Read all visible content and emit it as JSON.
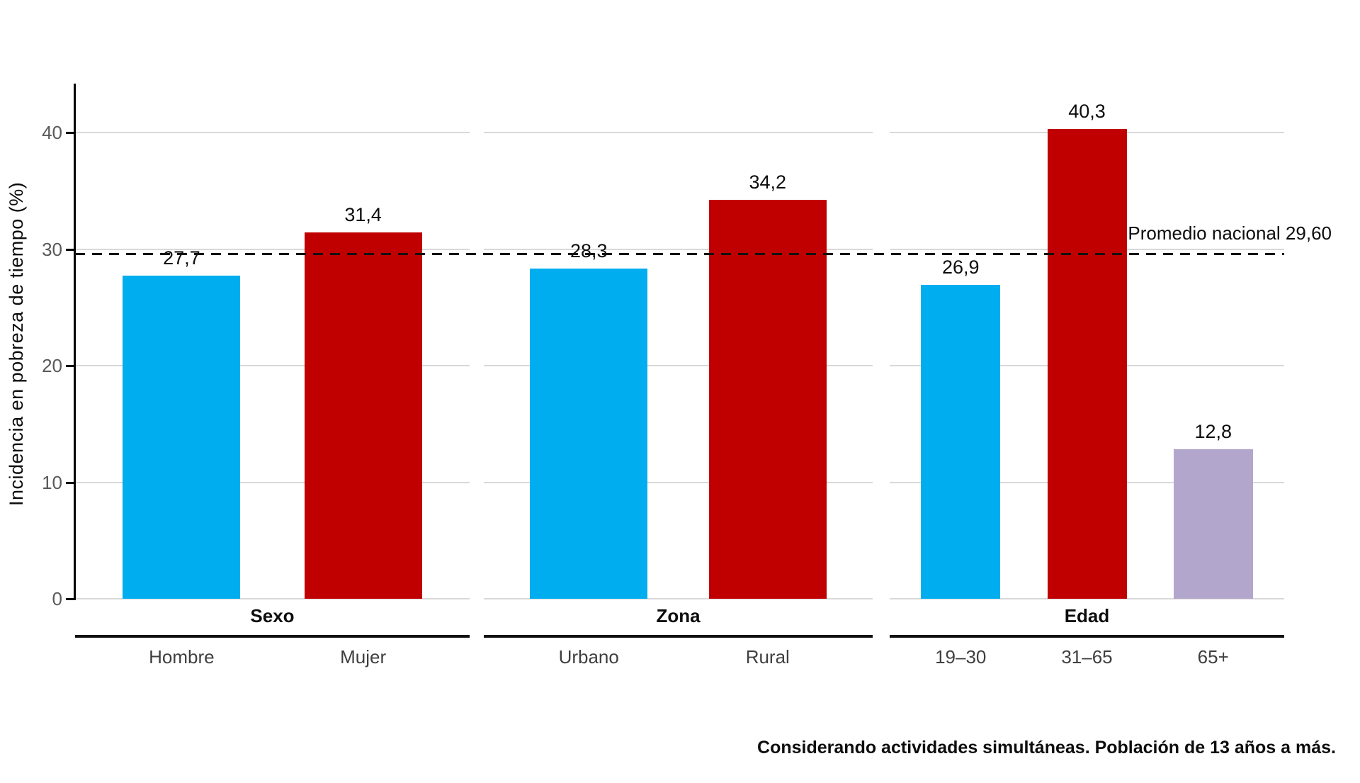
{
  "chart_data": {
    "type": "bar",
    "title": "",
    "ylabel": "Incidencia en pobreza de tiempo (%)",
    "xlabel": "",
    "ylim": [
      0,
      44
    ],
    "yticks": [
      0,
      10,
      20,
      30,
      40
    ],
    "grid": "horizontal",
    "legend": "none",
    "reference_line": {
      "value": 29.6,
      "label": "Promedio nacional 29,60"
    },
    "groups": [
      {
        "label": "Sexo",
        "categories": [
          "Hombre",
          "Mujer"
        ],
        "values": [
          27.7,
          31.4
        ],
        "value_labels": [
          "27,7",
          "31,4"
        ],
        "colors": [
          "#00AEEF",
          "#C00000"
        ]
      },
      {
        "label": "Zona",
        "categories": [
          "Urbano",
          "Rural"
        ],
        "values": [
          28.3,
          34.2
        ],
        "value_labels": [
          "28,3",
          "34,2"
        ],
        "colors": [
          "#00AEEF",
          "#C00000"
        ]
      },
      {
        "label": "Edad",
        "categories": [
          "19–30",
          "31–65",
          "65+"
        ],
        "values": [
          26.9,
          40.3,
          12.8
        ],
        "value_labels": [
          "26,9",
          "40,3",
          "12,8"
        ],
        "colors": [
          "#00AEEF",
          "#C00000",
          "#B3A6CC"
        ]
      }
    ],
    "caption": "Considerando actividades simultáneas. Población de 13 años a más."
  },
  "colors": {
    "bar_blue": "#00AEEF",
    "bar_red": "#C00000",
    "bar_lavender": "#B3A6CC",
    "gridline": "#D9D9D9",
    "axis": "#000000",
    "tick_label": "#595959",
    "category_label": "#3F3F3F",
    "text": "#0D0D0D"
  }
}
